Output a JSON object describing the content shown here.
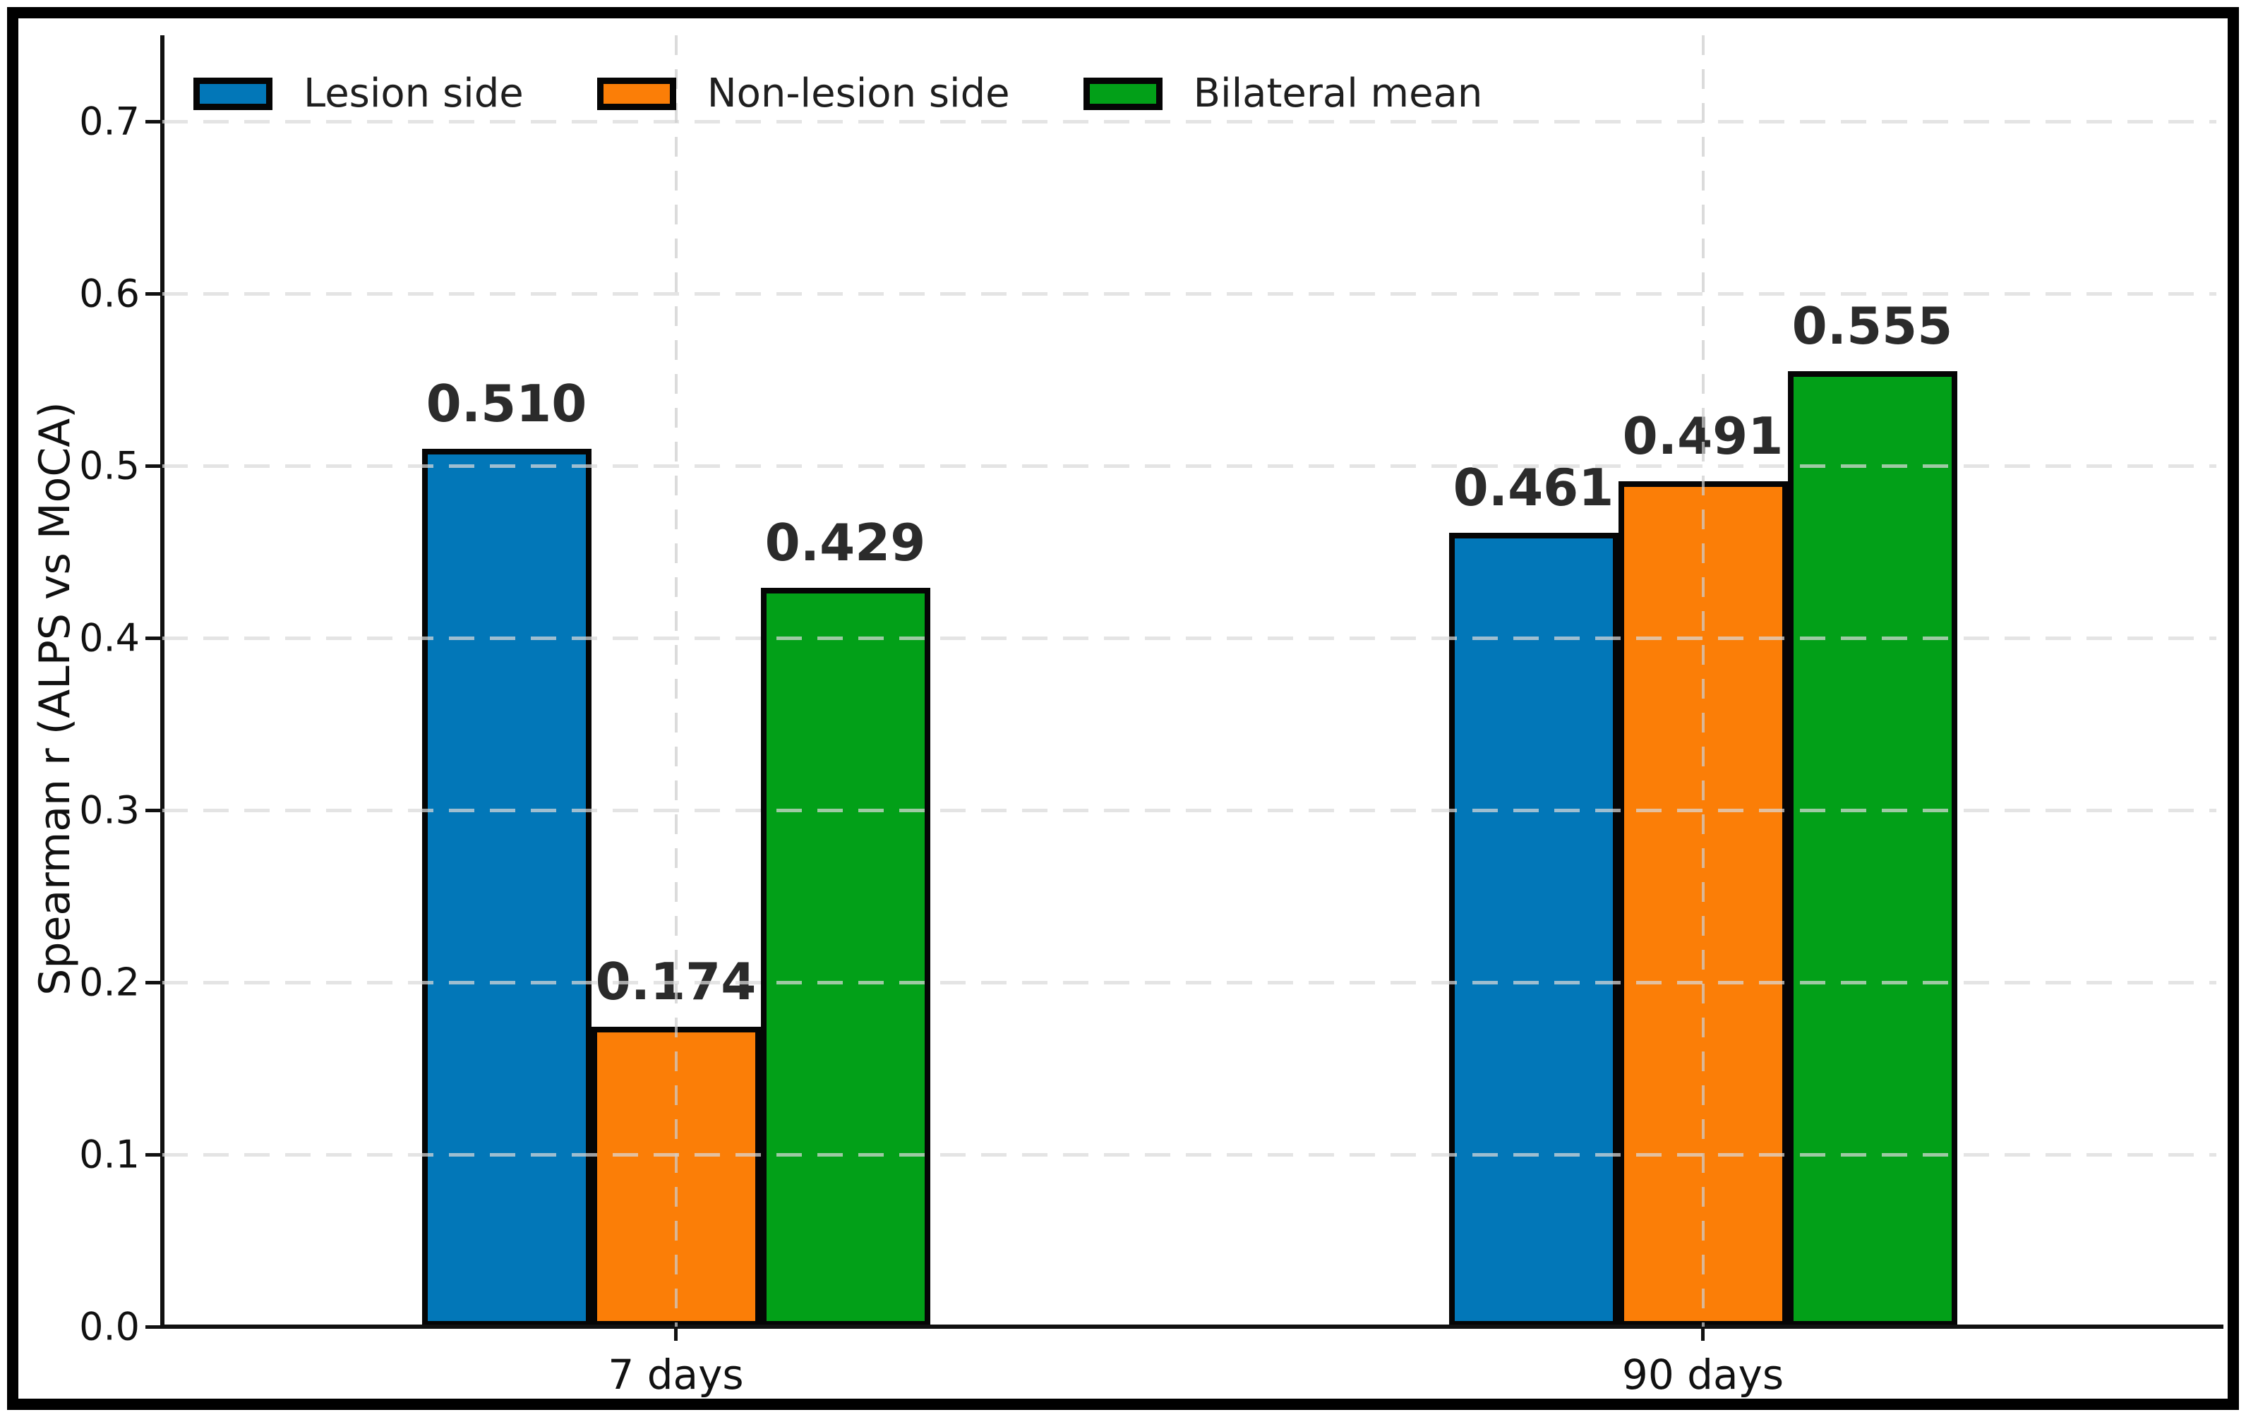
{
  "chart_data": {
    "type": "bar",
    "title": "",
    "xlabel": "",
    "ylabel": "Spearman r (ALPS vs MoCA)",
    "categories": [
      "7 days",
      "90 days"
    ],
    "series": [
      {
        "name": "Lesion side",
        "color": "#0277b8",
        "values": [
          0.51,
          0.461
        ],
        "value_labels": [
          "0.510",
          "0.461"
        ]
      },
      {
        "name": "Non-lesion side",
        "color": "#fb7e07",
        "values": [
          0.174,
          0.491
        ],
        "value_labels": [
          "0.174",
          "0.491"
        ]
      },
      {
        "name": "Bilateral mean",
        "color": "#02a018",
        "values": [
          0.429,
          0.555
        ],
        "value_labels": [
          "0.429",
          "0.555"
        ]
      }
    ],
    "yticks": [
      "0.0",
      "0.1",
      "0.2",
      "0.3",
      "0.4",
      "0.5",
      "0.6",
      "0.7"
    ],
    "ylim": [
      0,
      0.75
    ],
    "bar_group_width_units": 0.84,
    "legend_position": "upper left, horizontal row inside plot",
    "grid": "light gray dashed horizontal lines every 0.1 and dashed vertical lines at group centers, drawn over the bars",
    "bar_edge_color": "#000000",
    "axis_color": "#111111",
    "value_label_color": "#2b2b2b"
  }
}
